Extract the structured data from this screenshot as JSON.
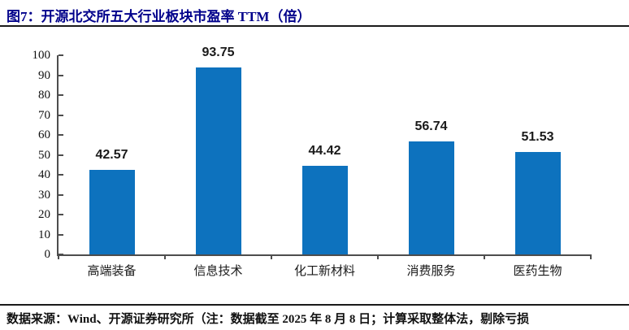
{
  "figure": {
    "title": "图7：开源北交所五大行业板块市盈率 TTM（倍）"
  },
  "footer": {
    "source_note": "数据来源：Wind、开源证券研究所（注：数据截至 2025 年 8 月 8 日；计算采取整体法，剔除亏损"
  },
  "colors": {
    "bar": "#0D72BE",
    "title": "#00008B",
    "axis": "#4d4d4d",
    "rule": "#1a1a1a"
  },
  "chart_data": {
    "type": "bar",
    "title": "图7：开源北交所五大行业板块市盈率 TTM（倍）",
    "categories": [
      "高端装备",
      "信息技术",
      "化工新材料",
      "消费服务",
      "医药生物"
    ],
    "values": [
      42.57,
      93.75,
      44.42,
      56.74,
      51.53
    ],
    "value_labels": [
      "42.57",
      "93.75",
      "44.42",
      "56.74",
      "51.53"
    ],
    "xlabel": "",
    "ylabel": "",
    "ylim": [
      0,
      100
    ],
    "y_tick_step": 10,
    "y_ticks": [
      0,
      10,
      20,
      30,
      40,
      50,
      60,
      70,
      80,
      90,
      100
    ],
    "grid": false,
    "legend": "none",
    "bar_color": "#0D72BE"
  }
}
